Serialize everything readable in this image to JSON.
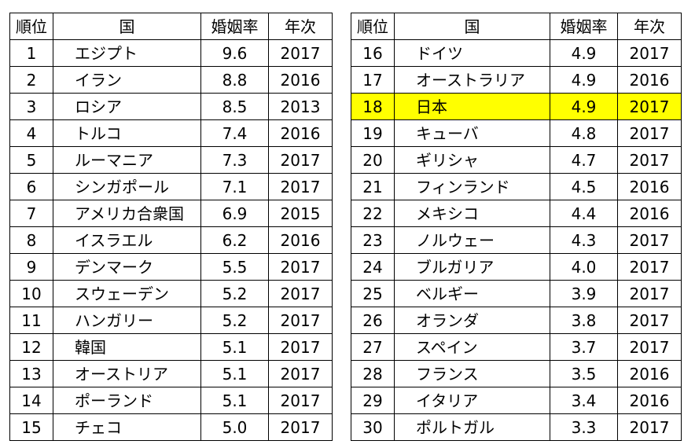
{
  "headers": {
    "rank": "順位",
    "country": "国",
    "rate": "婚姻率",
    "year": "年次"
  },
  "left_rows": [
    {
      "rank": "1",
      "country": "エジプト",
      "rate": "9.6",
      "year": "2017"
    },
    {
      "rank": "2",
      "country": "イラン",
      "rate": "8.8",
      "year": "2016"
    },
    {
      "rank": "3",
      "country": "ロシア",
      "rate": "8.5",
      "year": "2013"
    },
    {
      "rank": "4",
      "country": "トルコ",
      "rate": "7.4",
      "year": "2016"
    },
    {
      "rank": "5",
      "country": "ルーマニア",
      "rate": "7.3",
      "year": "2017"
    },
    {
      "rank": "6",
      "country": "シンガポール",
      "rate": "7.1",
      "year": "2017"
    },
    {
      "rank": "7",
      "country": "アメリカ合衆国",
      "rate": "6.9",
      "year": "2015"
    },
    {
      "rank": "8",
      "country": "イスラエル",
      "rate": "6.2",
      "year": "2016"
    },
    {
      "rank": "9",
      "country": "デンマーク",
      "rate": "5.5",
      "year": "2017"
    },
    {
      "rank": "10",
      "country": "スウェーデン",
      "rate": "5.2",
      "year": "2017"
    },
    {
      "rank": "11",
      "country": "ハンガリー",
      "rate": "5.2",
      "year": "2017"
    },
    {
      "rank": "12",
      "country": "韓国",
      "rate": "5.1",
      "year": "2017"
    },
    {
      "rank": "13",
      "country": "オーストリア",
      "rate": "5.1",
      "year": "2017"
    },
    {
      "rank": "14",
      "country": "ポーランド",
      "rate": "5.1",
      "year": "2017"
    },
    {
      "rank": "15",
      "country": "チェコ",
      "rate": "5.0",
      "year": "2017"
    }
  ],
  "right_rows": [
    {
      "rank": "16",
      "country": "ドイツ",
      "rate": "4.9",
      "year": "2017"
    },
    {
      "rank": "17",
      "country": "オーストラリア",
      "rate": "4.9",
      "year": "2016"
    },
    {
      "rank": "18",
      "country": "日本",
      "rate": "4.9",
      "year": "2017",
      "highlight": true
    },
    {
      "rank": "19",
      "country": "キューバ",
      "rate": "4.8",
      "year": "2017"
    },
    {
      "rank": "20",
      "country": "ギリシャ",
      "rate": "4.7",
      "year": "2017"
    },
    {
      "rank": "21",
      "country": "フィンランド",
      "rate": "4.5",
      "year": "2016"
    },
    {
      "rank": "22",
      "country": "メキシコ",
      "rate": "4.4",
      "year": "2016"
    },
    {
      "rank": "23",
      "country": "ノルウェー",
      "rate": "4.3",
      "year": "2017"
    },
    {
      "rank": "24",
      "country": "ブルガリア",
      "rate": "4.0",
      "year": "2017"
    },
    {
      "rank": "25",
      "country": "ベルギー",
      "rate": "3.9",
      "year": "2017"
    },
    {
      "rank": "26",
      "country": "オランダ",
      "rate": "3.8",
      "year": "2017"
    },
    {
      "rank": "27",
      "country": "スペイン",
      "rate": "3.7",
      "year": "2017"
    },
    {
      "rank": "28",
      "country": "フランス",
      "rate": "3.5",
      "year": "2016"
    },
    {
      "rank": "29",
      "country": "イタリア",
      "rate": "3.4",
      "year": "2016"
    },
    {
      "rank": "30",
      "country": "ポルトガル",
      "rate": "3.3",
      "year": "2017"
    }
  ],
  "colors": {
    "highlight": "#ffff00",
    "border": "#000000",
    "text": "#000000"
  }
}
